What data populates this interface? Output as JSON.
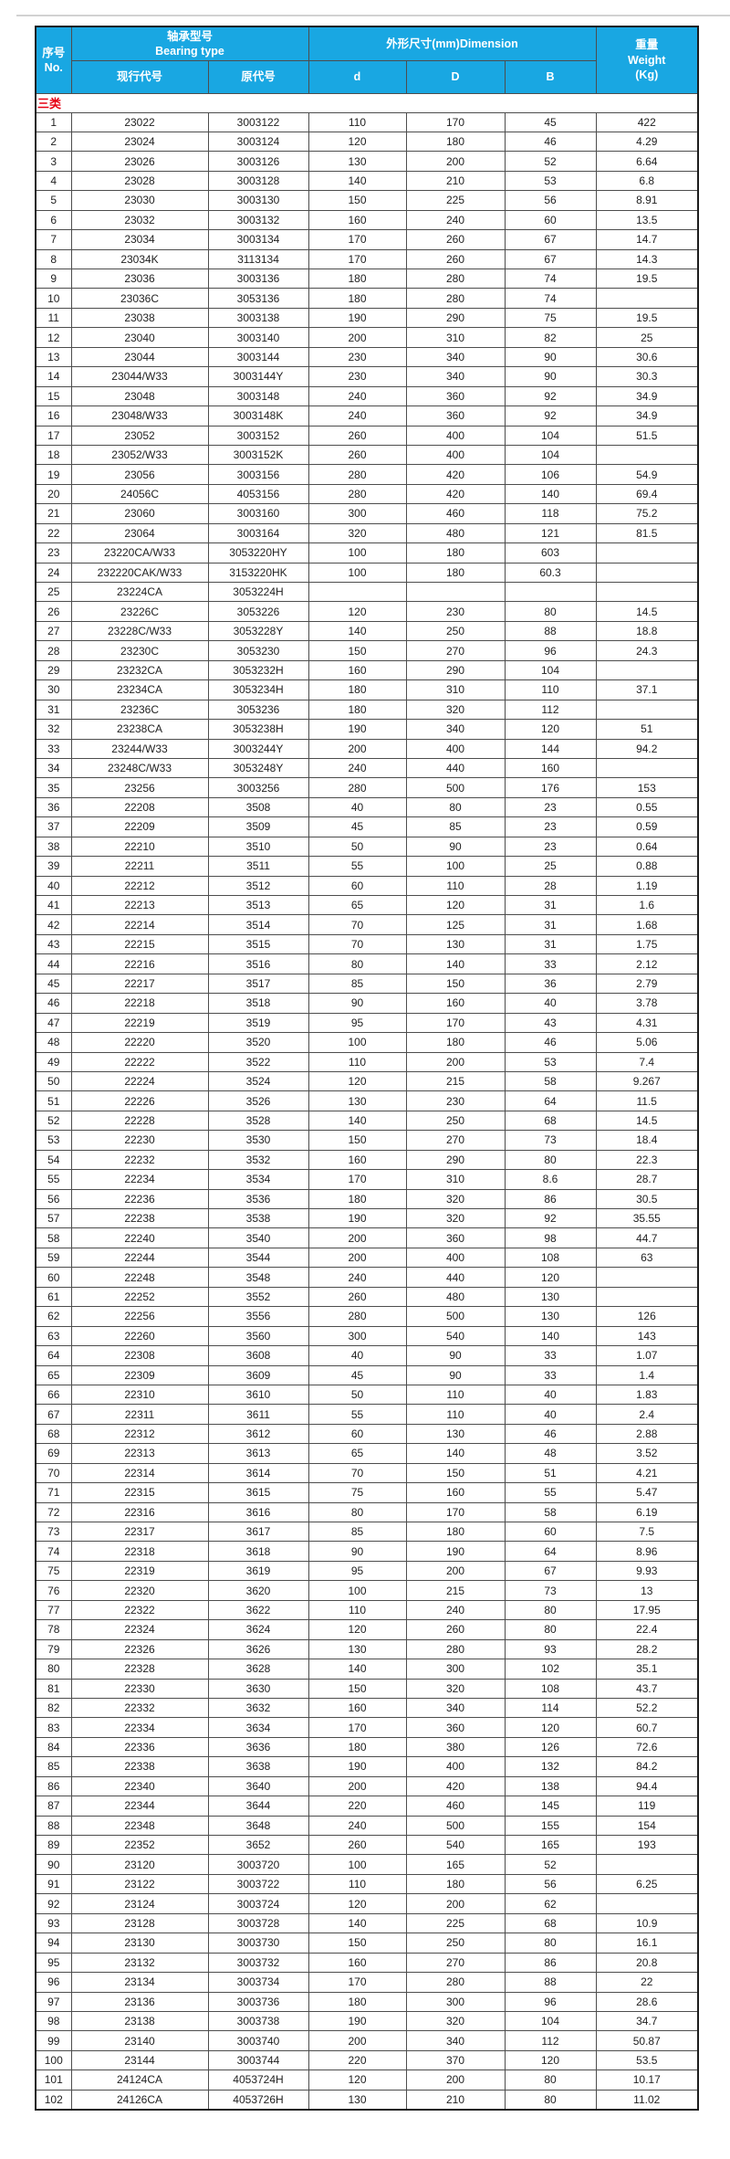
{
  "category_label": "三类",
  "colors": {
    "header_bg": "#19a7e2",
    "header_text": "#ffffff",
    "category_text": "#e60012",
    "border_inner": "#4d4d4d",
    "border_outer": "#1c1c1c"
  },
  "table": {
    "header": {
      "no_zh": "序号",
      "no_en": "No.",
      "bearing_type_zh": "轴承型号",
      "bearing_type_en": "Bearing type",
      "current_code": "现行代号",
      "old_code": "原代号",
      "dimension": "外形尺寸(mm)Dimension",
      "d_label": "d",
      "D_label": "D",
      "B_label": "B",
      "weight_zh": "重量",
      "weight_en": "Weight",
      "weight_unit": "(Kg)"
    },
    "columns": [
      "no",
      "current_code",
      "old_code",
      "d",
      "D",
      "B",
      "weight_kg"
    ],
    "rows": [
      [
        "1",
        "23022",
        "3003122",
        "110",
        "170",
        "45",
        "422"
      ],
      [
        "2",
        "23024",
        "3003124",
        "120",
        "180",
        "46",
        "4.29"
      ],
      [
        "3",
        "23026",
        "3003126",
        "130",
        "200",
        "52",
        "6.64"
      ],
      [
        "4",
        "23028",
        "3003128",
        "140",
        "210",
        "53",
        "6.8"
      ],
      [
        "5",
        "23030",
        "3003130",
        "150",
        "225",
        "56",
        "8.91"
      ],
      [
        "6",
        "23032",
        "3003132",
        "160",
        "240",
        "60",
        "13.5"
      ],
      [
        "7",
        "23034",
        "3003134",
        "170",
        "260",
        "67",
        "14.7"
      ],
      [
        "8",
        "23034K",
        "3113134",
        "170",
        "260",
        "67",
        "14.3"
      ],
      [
        "9",
        "23036",
        "3003136",
        "180",
        "280",
        "74",
        "19.5"
      ],
      [
        "10",
        "23036C",
        "3053136",
        "180",
        "280",
        "74",
        ""
      ],
      [
        "11",
        "23038",
        "3003138",
        "190",
        "290",
        "75",
        "19.5"
      ],
      [
        "12",
        "23040",
        "3003140",
        "200",
        "310",
        "82",
        "25"
      ],
      [
        "13",
        "23044",
        "3003144",
        "230",
        "340",
        "90",
        "30.6"
      ],
      [
        "14",
        "23044/W33",
        "3003144Y",
        "230",
        "340",
        "90",
        "30.3"
      ],
      [
        "15",
        "23048",
        "3003148",
        "240",
        "360",
        "92",
        "34.9"
      ],
      [
        "16",
        "23048/W33",
        "3003148K",
        "240",
        "360",
        "92",
        "34.9"
      ],
      [
        "17",
        "23052",
        "3003152",
        "260",
        "400",
        "104",
        "51.5"
      ],
      [
        "18",
        "23052/W33",
        "3003152K",
        "260",
        "400",
        "104",
        ""
      ],
      [
        "19",
        "23056",
        "3003156",
        "280",
        "420",
        "106",
        "54.9"
      ],
      [
        "20",
        "24056C",
        "4053156",
        "280",
        "420",
        "140",
        "69.4"
      ],
      [
        "21",
        "23060",
        "3003160",
        "300",
        "460",
        "118",
        "75.2"
      ],
      [
        "22",
        "23064",
        "3003164",
        "320",
        "480",
        "121",
        "81.5"
      ],
      [
        "23",
        "23220CA/W33",
        "3053220HY",
        "100",
        "180",
        "603",
        ""
      ],
      [
        "24",
        "232220CAK/W33",
        "3153220HK",
        "100",
        "180",
        "60.3",
        ""
      ],
      [
        "25",
        "23224CA",
        "3053224H",
        "",
        "",
        "",
        ""
      ],
      [
        "26",
        "23226C",
        "3053226",
        "120",
        "230",
        "80",
        "14.5"
      ],
      [
        "27",
        "23228C/W33",
        "3053228Y",
        "140",
        "250",
        "88",
        "18.8"
      ],
      [
        "28",
        "23230C",
        "3053230",
        "150",
        "270",
        "96",
        "24.3"
      ],
      [
        "29",
        "23232CA",
        "3053232H",
        "160",
        "290",
        "104",
        ""
      ],
      [
        "30",
        "23234CA",
        "3053234H",
        "180",
        "310",
        "110",
        "37.1"
      ],
      [
        "31",
        "23236C",
        "3053236",
        "180",
        "320",
        "112",
        ""
      ],
      [
        "32",
        "23238CA",
        "3053238H",
        "190",
        "340",
        "120",
        "51"
      ],
      [
        "33",
        "23244/W33",
        "3003244Y",
        "200",
        "400",
        "144",
        "94.2"
      ],
      [
        "34",
        "23248C/W33",
        "3053248Y",
        "240",
        "440",
        "160",
        ""
      ],
      [
        "35",
        "23256",
        "3003256",
        "280",
        "500",
        "176",
        "153"
      ],
      [
        "36",
        "22208",
        "3508",
        "40",
        "80",
        "23",
        "0.55"
      ],
      [
        "37",
        "22209",
        "3509",
        "45",
        "85",
        "23",
        "0.59"
      ],
      [
        "38",
        "22210",
        "3510",
        "50",
        "90",
        "23",
        "0.64"
      ],
      [
        "39",
        "22211",
        "3511",
        "55",
        "100",
        "25",
        "0.88"
      ],
      [
        "40",
        "22212",
        "3512",
        "60",
        "110",
        "28",
        "1.19"
      ],
      [
        "41",
        "22213",
        "3513",
        "65",
        "120",
        "31",
        "1.6"
      ],
      [
        "42",
        "22214",
        "3514",
        "70",
        "125",
        "31",
        "1.68"
      ],
      [
        "43",
        "22215",
        "3515",
        "70",
        "130",
        "31",
        "1.75"
      ],
      [
        "44",
        "22216",
        "3516",
        "80",
        "140",
        "33",
        "2.12"
      ],
      [
        "45",
        "22217",
        "3517",
        "85",
        "150",
        "36",
        "2.79"
      ],
      [
        "46",
        "22218",
        "3518",
        "90",
        "160",
        "40",
        "3.78"
      ],
      [
        "47",
        "22219",
        "3519",
        "95",
        "170",
        "43",
        "4.31"
      ],
      [
        "48",
        "22220",
        "3520",
        "100",
        "180",
        "46",
        "5.06"
      ],
      [
        "49",
        "22222",
        "3522",
        "110",
        "200",
        "53",
        "7.4"
      ],
      [
        "50",
        "22224",
        "3524",
        "120",
        "215",
        "58",
        "9.267"
      ],
      [
        "51",
        "22226",
        "3526",
        "130",
        "230",
        "64",
        "11.5"
      ],
      [
        "52",
        "22228",
        "3528",
        "140",
        "250",
        "68",
        "14.5"
      ],
      [
        "53",
        "22230",
        "3530",
        "150",
        "270",
        "73",
        "18.4"
      ],
      [
        "54",
        "22232",
        "3532",
        "160",
        "290",
        "80",
        "22.3"
      ],
      [
        "55",
        "22234",
        "3534",
        "170",
        "310",
        "8.6",
        "28.7"
      ],
      [
        "56",
        "22236",
        "3536",
        "180",
        "320",
        "86",
        "30.5"
      ],
      [
        "57",
        "22238",
        "3538",
        "190",
        "320",
        "92",
        "35.55"
      ],
      [
        "58",
        "22240",
        "3540",
        "200",
        "360",
        "98",
        "44.7"
      ],
      [
        "59",
        "22244",
        "3544",
        "200",
        "400",
        "108",
        "63"
      ],
      [
        "60",
        "22248",
        "3548",
        "240",
        "440",
        "120",
        ""
      ],
      [
        "61",
        "22252",
        "3552",
        "260",
        "480",
        "130",
        ""
      ],
      [
        "62",
        "22256",
        "3556",
        "280",
        "500",
        "130",
        "126"
      ],
      [
        "63",
        "22260",
        "3560",
        "300",
        "540",
        "140",
        "143"
      ],
      [
        "64",
        "22308",
        "3608",
        "40",
        "90",
        "33",
        "1.07"
      ],
      [
        "65",
        "22309",
        "3609",
        "45",
        "90",
        "33",
        "1.4"
      ],
      [
        "66",
        "22310",
        "3610",
        "50",
        "110",
        "40",
        "1.83"
      ],
      [
        "67",
        "22311",
        "3611",
        "55",
        "110",
        "40",
        "2.4"
      ],
      [
        "68",
        "22312",
        "3612",
        "60",
        "130",
        "46",
        "2.88"
      ],
      [
        "69",
        "22313",
        "3613",
        "65",
        "140",
        "48",
        "3.52"
      ],
      [
        "70",
        "22314",
        "3614",
        "70",
        "150",
        "51",
        "4.21"
      ],
      [
        "71",
        "22315",
        "3615",
        "75",
        "160",
        "55",
        "5.47"
      ],
      [
        "72",
        "22316",
        "3616",
        "80",
        "170",
        "58",
        "6.19"
      ],
      [
        "73",
        "22317",
        "3617",
        "85",
        "180",
        "60",
        "7.5"
      ],
      [
        "74",
        "22318",
        "3618",
        "90",
        "190",
        "64",
        "8.96"
      ],
      [
        "75",
        "22319",
        "3619",
        "95",
        "200",
        "67",
        "9.93"
      ],
      [
        "76",
        "22320",
        "3620",
        "100",
        "215",
        "73",
        "13"
      ],
      [
        "77",
        "22322",
        "3622",
        "110",
        "240",
        "80",
        "17.95"
      ],
      [
        "78",
        "22324",
        "3624",
        "120",
        "260",
        "80",
        "22.4"
      ],
      [
        "79",
        "22326",
        "3626",
        "130",
        "280",
        "93",
        "28.2"
      ],
      [
        "80",
        "22328",
        "3628",
        "140",
        "300",
        "102",
        "35.1"
      ],
      [
        "81",
        "22330",
        "3630",
        "150",
        "320",
        "108",
        "43.7"
      ],
      [
        "82",
        "22332",
        "3632",
        "160",
        "340",
        "114",
        "52.2"
      ],
      [
        "83",
        "22334",
        "3634",
        "170",
        "360",
        "120",
        "60.7"
      ],
      [
        "84",
        "22336",
        "3636",
        "180",
        "380",
        "126",
        "72.6"
      ],
      [
        "85",
        "22338",
        "3638",
        "190",
        "400",
        "132",
        "84.2"
      ],
      [
        "86",
        "22340",
        "3640",
        "200",
        "420",
        "138",
        "94.4"
      ],
      [
        "87",
        "22344",
        "3644",
        "220",
        "460",
        "145",
        "119"
      ],
      [
        "88",
        "22348",
        "3648",
        "240",
        "500",
        "155",
        "154"
      ],
      [
        "89",
        "22352",
        "3652",
        "260",
        "540",
        "165",
        "193"
      ],
      [
        "90",
        "23120",
        "3003720",
        "100",
        "165",
        "52",
        ""
      ],
      [
        "91",
        "23122",
        "3003722",
        "110",
        "180",
        "56",
        "6.25"
      ],
      [
        "92",
        "23124",
        "3003724",
        "120",
        "200",
        "62",
        ""
      ],
      [
        "93",
        "23128",
        "3003728",
        "140",
        "225",
        "68",
        "10.9"
      ],
      [
        "94",
        "23130",
        "3003730",
        "150",
        "250",
        "80",
        "16.1"
      ],
      [
        "95",
        "23132",
        "3003732",
        "160",
        "270",
        "86",
        "20.8"
      ],
      [
        "96",
        "23134",
        "3003734",
        "170",
        "280",
        "88",
        "22"
      ],
      [
        "97",
        "23136",
        "3003736",
        "180",
        "300",
        "96",
        "28.6"
      ],
      [
        "98",
        "23138",
        "3003738",
        "190",
        "320",
        "104",
        "34.7"
      ],
      [
        "99",
        "23140",
        "3003740",
        "200",
        "340",
        "112",
        "50.87"
      ],
      [
        "100",
        "23144",
        "3003744",
        "220",
        "370",
        "120",
        "53.5"
      ],
      [
        "101",
        "24124CA",
        "4053724H",
        "120",
        "200",
        "80",
        "10.17"
      ],
      [
        "102",
        "24126CA",
        "4053726H",
        "130",
        "210",
        "80",
        "11.02"
      ]
    ]
  }
}
